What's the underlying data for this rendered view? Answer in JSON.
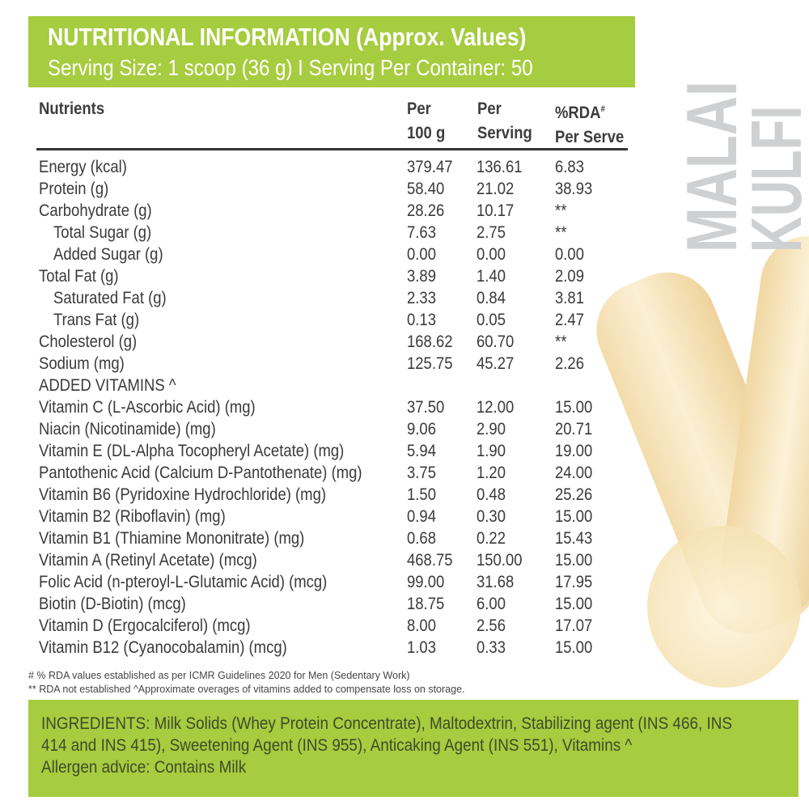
{
  "header": {
    "title": "NUTRITIONAL INFORMATION (Approx. Values)",
    "subtitle": "Serving Size: 1 scoop (36 g) I  Serving Per Container: 50"
  },
  "columns": {
    "nutrients": "Nutrients",
    "per100_a": "Per",
    "per100_b": "100 g",
    "perserv_a": "Per",
    "perserv_b": "Serving",
    "rda_a": "%RDA",
    "rda_sup": "#",
    "rda_b": "Per Serve"
  },
  "rows": [
    {
      "name": "Energy (kcal)",
      "p100": "379.47",
      "ps": "136.61",
      "rda": "6.83"
    },
    {
      "name": "Protein (g)",
      "p100": "58.40",
      "ps": "21.02",
      "rda": "38.93"
    },
    {
      "name": "Carbohydrate (g)",
      "p100": "28.26",
      "ps": "10.17",
      "rda": "**"
    },
    {
      "name": "Total Sugar (g)",
      "p100": "7.63",
      "ps": "2.75",
      "rda": "**",
      "indent": true
    },
    {
      "name": "Added Sugar (g)",
      "p100": "0.00",
      "ps": "0.00",
      "rda": "0.00",
      "indent": true
    },
    {
      "name": "Total Fat (g)",
      "p100": "3.89",
      "ps": "1.40",
      "rda": "2.09"
    },
    {
      "name": "Saturated Fat (g)",
      "p100": "2.33",
      "ps": "0.84",
      "rda": "3.81",
      "indent": true
    },
    {
      "name": "Trans Fat (g)",
      "p100": "0.13",
      "ps": "0.05",
      "rda": "2.47",
      "indent": true
    },
    {
      "name": "Cholesterol (g)",
      "p100": "168.62",
      "ps": "60.70",
      "rda": "**"
    },
    {
      "name": "Sodium (mg)",
      "p100": "125.75",
      "ps": "45.27",
      "rda": "2.26"
    },
    {
      "name": "ADDED VITAMINS ^",
      "p100": "",
      "ps": "",
      "rda": ""
    },
    {
      "name": "Vitamin C (L-Ascorbic Acid) (mg)",
      "p100": "37.50",
      "ps": "12.00",
      "rda": "15.00"
    },
    {
      "name": "Niacin (Nicotinamide) (mg)",
      "p100": "9.06",
      "ps": "2.90",
      "rda": "20.71"
    },
    {
      "name": "Vitamin E (DL-Alpha Tocopheryl Acetate) (mg)",
      "p100": "5.94",
      "ps": "1.90",
      "rda": "19.00"
    },
    {
      "name": "Pantothenic Acid (Calcium D-Pantothenate) (mg)",
      "p100": "3.75",
      "ps": "1.20",
      "rda": "24.00"
    },
    {
      "name": "Vitamin B6 (Pyridoxine Hydrochloride) (mg)",
      "p100": "1.50",
      "ps": "0.48",
      "rda": "25.26"
    },
    {
      "name": "Vitamin B2 (Riboflavin) (mg)",
      "p100": "0.94",
      "ps": "0.30",
      "rda": "15.00"
    },
    {
      "name": "Vitamin B1 (Thiamine Mononitrate) (mg)",
      "p100": "0.68",
      "ps": "0.22",
      "rda": "15.43"
    },
    {
      "name": "Vitamin A (Retinyl Acetate) (mcg)",
      "p100": "468.75",
      "ps": "150.00",
      "rda": "15.00"
    },
    {
      "name": "Folic Acid (n-pteroyl-L-Glutamic Acid) (mcg)",
      "p100": "99.00",
      "ps": "31.68",
      "rda": "17.95"
    },
    {
      "name": "Biotin (D-Biotin) (mcg)",
      "p100": "18.75",
      "ps": "6.00",
      "rda": "15.00"
    },
    {
      "name": "Vitamin D (Ergocalciferol) (mcg)",
      "p100": "8.00",
      "ps": "2.56",
      "rda": "17.07"
    },
    {
      "name": "Vitamin B12 (Cyanocobalamin) (mcg)",
      "p100": "1.03",
      "ps": "0.33",
      "rda": "15.00"
    }
  ],
  "footnotes": [
    "# % RDA values established as per ICMR Guidelines 2020 for Men (Sedentary Work)",
    "** RDA not established  ^Approximate overages of vitamins added to compensate loss on storage."
  ],
  "ingredients": {
    "line1": "INGREDIENTS:  Milk Solids (Whey Protein Concentrate), Maltodextrin, Stabilizing agent (INS 466, INS",
    "line2": "414 and INS 415), Sweetening Agent (INS 955), Anticaking Agent (INS 551), Vitamins ^",
    "line3": "Allergen advice: Contains Milk"
  },
  "flavor": {
    "line1": "MALAI",
    "line2": "KULFI"
  },
  "colors": {
    "brand_green": "#a6cc3f",
    "flavor_text": "#cfd0d2"
  }
}
